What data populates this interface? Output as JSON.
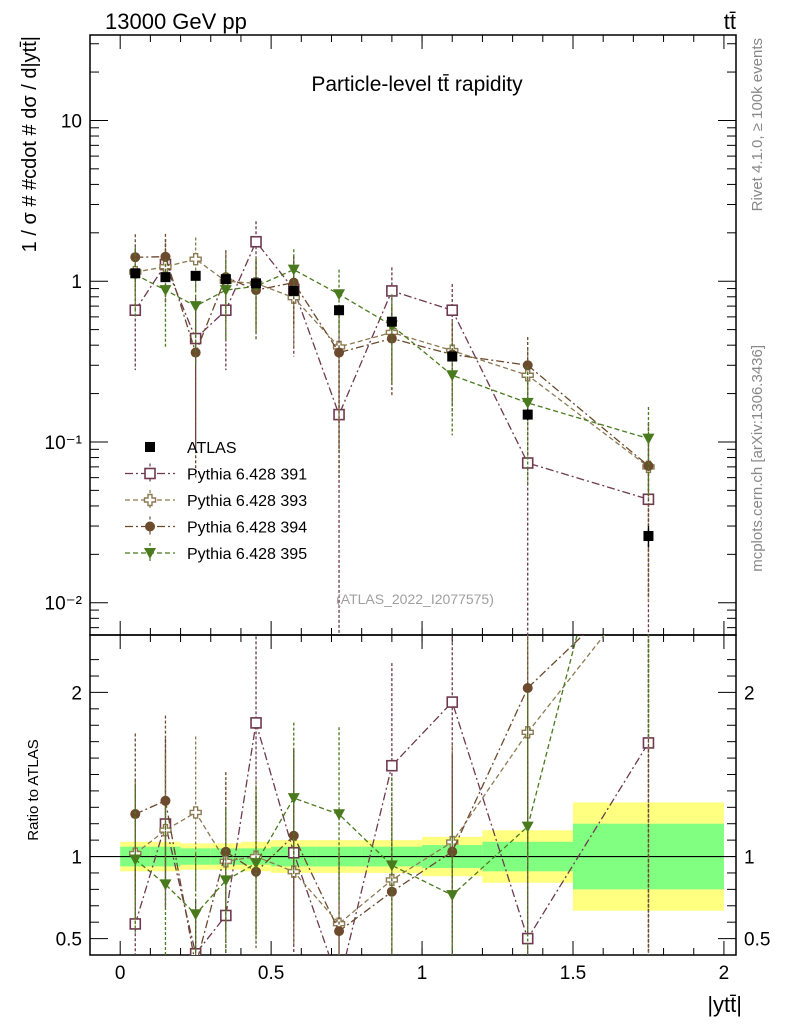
{
  "header": {
    "left": "13000 GeV pp",
    "right": "tt̄"
  },
  "side_labels": {
    "rivet": "Rivet 4.1.0, ≥ 100k events",
    "mcplots": "mcplots.cern.ch [arXiv:1306.3436]"
  },
  "colors": {
    "atlas": "#000000",
    "p391": "#6e3a4f",
    "p393": "#8c7a52",
    "p394": "#6b4a2e",
    "p395": "#4a7a1e",
    "band_outer": "#ffff80",
    "band_inner": "#80ff80"
  },
  "chart_data": {
    "type": "scatter",
    "title": "Particle-level tt̄ rapidity",
    "analysis_label": "(ATLAS_2022_I2077575)",
    "xlabel": "|ytt̄|",
    "ylabel": "1 / σ # #cdot # dσ / d|ytt̄|",
    "ratio_ylabel": "Ratio to ATLAS",
    "xlim": [
      -0.1,
      2.04
    ],
    "ylim_main": [
      0.0063,
      34
    ],
    "ylim_ratio": [
      0.4,
      2.35
    ],
    "x_ticks": [
      0,
      0.5,
      1,
      1.5,
      2
    ],
    "x_tick_labels": [
      "0",
      "0.5",
      "1",
      "1.5",
      "2"
    ],
    "y_ticks_main": [
      0.01,
      0.1,
      1,
      10
    ],
    "y_tick_labels_main": [
      "10⁻²",
      "10⁻¹",
      "1",
      "10"
    ],
    "y_ticks_ratio": [
      0.5,
      1,
      2
    ],
    "y_tick_labels_ratio": [
      "0.5",
      "1",
      "2"
    ],
    "legend_position": "lower-left",
    "bins": [
      {
        "lo": 0.0,
        "hi": 0.1
      },
      {
        "lo": 0.1,
        "hi": 0.2
      },
      {
        "lo": 0.2,
        "hi": 0.3
      },
      {
        "lo": 0.3,
        "hi": 0.4
      },
      {
        "lo": 0.4,
        "hi": 0.5
      },
      {
        "lo": 0.5,
        "hi": 0.65
      },
      {
        "lo": 0.65,
        "hi": 0.8
      },
      {
        "lo": 0.8,
        "hi": 1.0
      },
      {
        "lo": 1.0,
        "hi": 1.2
      },
      {
        "lo": 1.2,
        "hi": 1.5
      },
      {
        "lo": 1.5,
        "hi": 2.0
      }
    ],
    "band_rel_inner": [
      0.06,
      0.06,
      0.05,
      0.05,
      0.05,
      0.06,
      0.06,
      0.06,
      0.07,
      0.09,
      0.2
    ],
    "band_rel_outer": [
      0.09,
      0.09,
      0.08,
      0.08,
      0.09,
      0.1,
      0.1,
      0.1,
      0.12,
      0.16,
      0.33
    ],
    "series": [
      {
        "name": "ATLAS",
        "key": "atlas",
        "marker": "square-filled",
        "line": "none",
        "x": [
          0.05,
          0.15,
          0.25,
          0.35,
          0.45,
          0.575,
          0.725,
          0.9,
          1.1,
          1.35,
          1.75
        ],
        "y": [
          1.12,
          1.06,
          1.08,
          1.03,
          0.97,
          0.87,
          0.66,
          0.56,
          0.34,
          0.148,
          0.026
        ],
        "err": [
          0.06,
          0.06,
          0.05,
          0.05,
          0.05,
          0.05,
          0.04,
          0.03,
          0.02,
          0.012,
          0.004
        ]
      },
      {
        "name": "Pythia 6.428 391",
        "key": "p391",
        "marker": "square-open",
        "line": "dashdot",
        "x": [
          0.05,
          0.15,
          0.25,
          0.35,
          0.45,
          0.575,
          0.725,
          0.9,
          1.1,
          1.35,
          1.75
        ],
        "y": [
          0.66,
          1.27,
          0.44,
          0.66,
          1.76,
          0.89,
          0.148,
          0.87,
          0.66,
          0.074,
          0.044
        ],
        "err": [
          0.38,
          0.55,
          0.35,
          0.38,
          0.6,
          0.55,
          0.2,
          0.35,
          0.3,
          0.16,
          0.06
        ]
      },
      {
        "name": "Pythia 6.428 393",
        "key": "p393",
        "marker": "cross-open",
        "line": "dashed",
        "x": [
          0.05,
          0.15,
          0.25,
          0.35,
          0.45,
          0.575,
          0.725,
          0.9,
          1.1,
          1.35,
          1.75
        ],
        "y": [
          1.14,
          1.23,
          1.37,
          1.0,
          0.97,
          0.79,
          0.39,
          0.48,
          0.37,
          0.26,
          0.07
        ],
        "err": [
          0.5,
          0.5,
          0.5,
          0.5,
          0.45,
          0.4,
          0.3,
          0.25,
          0.2,
          0.12,
          0.06
        ]
      },
      {
        "name": "Pythia 6.428 394",
        "key": "p394",
        "marker": "circle-filled",
        "line": "dashdot",
        "x": [
          0.05,
          0.15,
          0.25,
          0.35,
          0.45,
          0.575,
          0.725,
          0.9,
          1.1,
          1.35,
          1.75
        ],
        "y": [
          1.41,
          1.42,
          0.36,
          1.06,
          0.88,
          0.98,
          0.36,
          0.44,
          0.35,
          0.3,
          0.071
        ],
        "err": [
          0.55,
          0.55,
          0.3,
          0.5,
          0.45,
          0.45,
          0.3,
          0.25,
          0.2,
          0.15,
          0.06
        ]
      },
      {
        "name": "Pythia 6.428 395",
        "key": "p395",
        "marker": "triangle-down-filled",
        "line": "dashed",
        "x": [
          0.05,
          0.15,
          0.25,
          0.35,
          0.45,
          0.575,
          0.725,
          0.9,
          1.1,
          1.35,
          1.75
        ],
        "y": [
          1.1,
          0.88,
          0.7,
          0.88,
          0.93,
          1.18,
          0.83,
          0.53,
          0.26,
          0.175,
          0.105
        ],
        "err": [
          0.5,
          0.5,
          0.4,
          0.45,
          0.45,
          0.4,
          0.35,
          0.3,
          0.15,
          0.12,
          0.06
        ]
      }
    ]
  }
}
